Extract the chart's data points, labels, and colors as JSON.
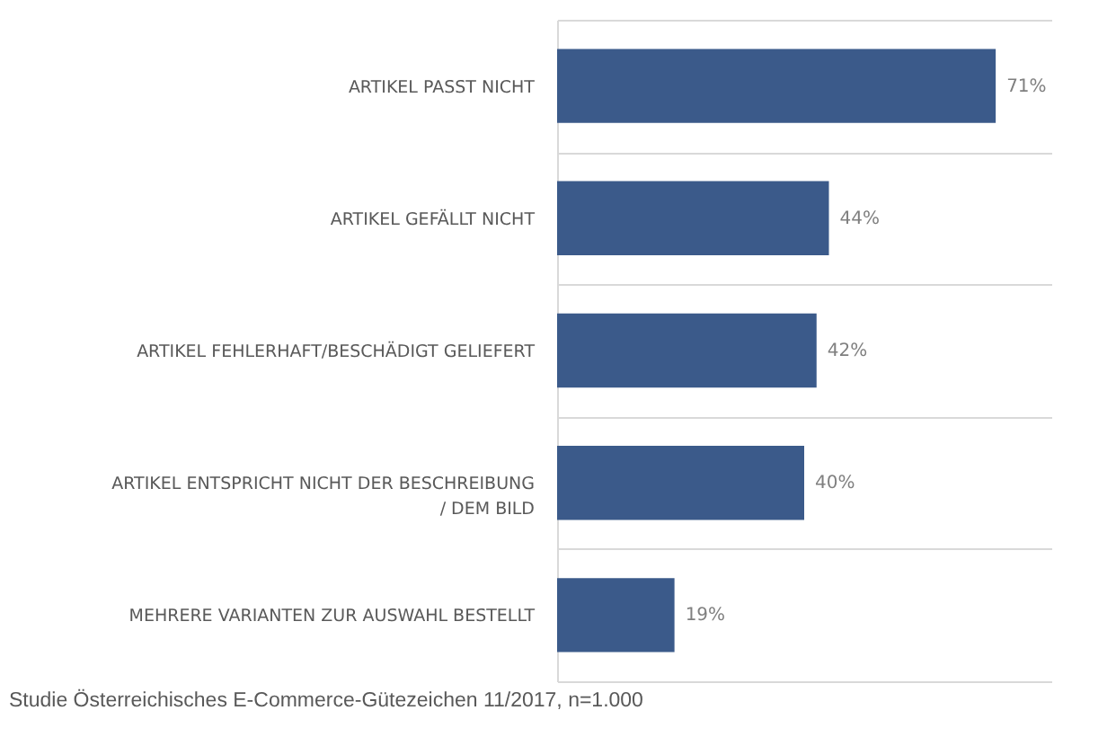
{
  "chart_data": {
    "type": "bar",
    "orientation": "horizontal",
    "categories": [
      "ARTIKEL PASST NICHT",
      "ARTIKEL GEFÄLLT NICHT",
      "ARTIKEL FEHLERHAFT/BESCHÄDIGT GELIEFERT",
      "ARTIKEL ENTSPRICHT NICHT DER BESCHREIBUNG / DEM BILD",
      "MEHRERE VARIANTEN ZUR AUSWAHL BESTELLT"
    ],
    "values": [
      71,
      44,
      42,
      40,
      19
    ],
    "color": "#3b5a8a",
    "value_labels": [
      "71%",
      "44%",
      "42%",
      "40%",
      "19%"
    ],
    "grid": "y",
    "tick_labels": "y",
    "annotations": [
      "Studie Österreichisches E-Commerce-Gütezeichen 11/2017, n=1.000"
    ]
  }
}
